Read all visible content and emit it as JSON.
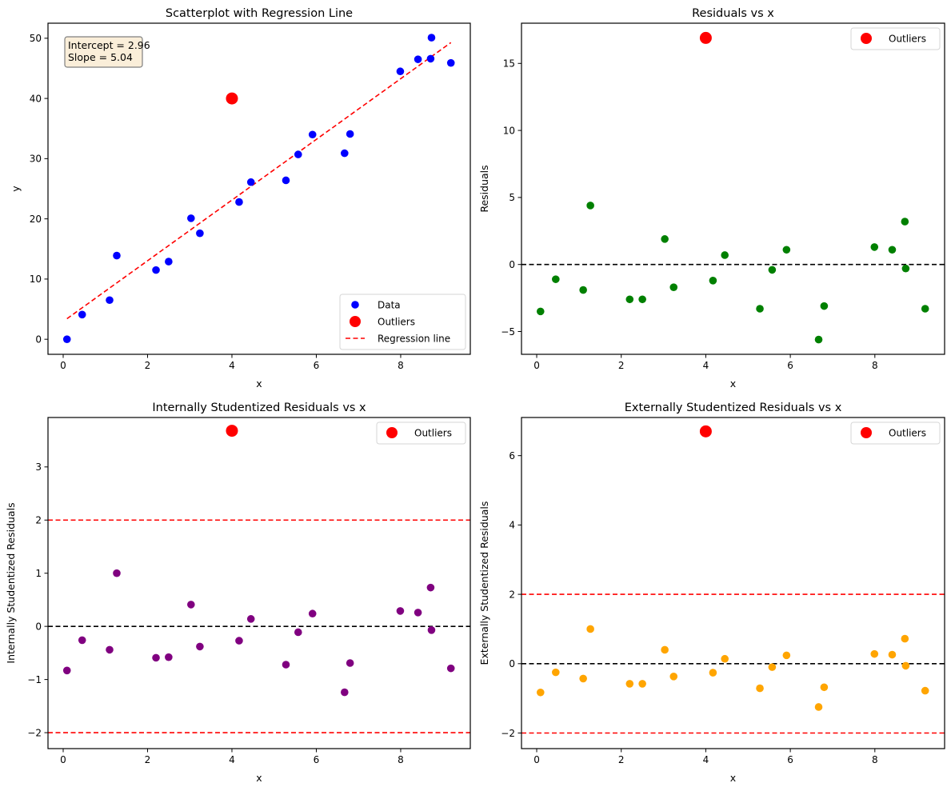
{
  "figure": {
    "colors": {
      "data": "#0000ff",
      "outlier": "#ff0000",
      "residual": "#008000",
      "internal": "#800080",
      "external": "#ffa500",
      "zero_line": "#000000",
      "threshold_line": "#ff0000",
      "annotation_bg": "#f5deb3",
      "annotation_border": "#7f7f7f"
    }
  },
  "chart_data": [
    {
      "id": "scatter",
      "type": "scatter",
      "title": "Scatterplot with Regression Line",
      "xlabel": "x",
      "ylabel": "y",
      "xlim": [
        -0.36,
        9.65
      ],
      "ylim": [
        -2.5,
        52.5
      ],
      "xticks": [
        0,
        2,
        4,
        6,
        8
      ],
      "yticks": [
        0,
        10,
        20,
        30,
        40,
        50
      ],
      "grid": false,
      "annotation": [
        "Intercept = 2.96",
        "Slope = 5.04"
      ],
      "legend_position": "lower-right",
      "legend": [
        {
          "label": "Data",
          "kind": "point-small",
          "color": "data"
        },
        {
          "label": "Outliers",
          "kind": "point-large",
          "color": "outlier"
        },
        {
          "label": "Regression line",
          "kind": "dashed-line",
          "color": "outlier"
        }
      ],
      "series": [
        {
          "name": "Data",
          "color": "data",
          "x": [
            0.09,
            0.45,
            1.1,
            1.27,
            2.2,
            2.5,
            3.03,
            3.24,
            4.17,
            4.45,
            5.28,
            5.57,
            5.91,
            6.67,
            6.8,
            7.99,
            8.41,
            8.71,
            8.73,
            9.19
          ],
          "y": [
            0.0,
            4.1,
            6.5,
            13.9,
            11.5,
            12.9,
            20.1,
            17.6,
            22.8,
            26.1,
            26.4,
            30.7,
            34.0,
            30.9,
            34.1,
            44.5,
            46.5,
            46.6,
            50.1,
            45.9
          ]
        },
        {
          "name": "Outliers",
          "color": "outlier",
          "x": [
            4.0
          ],
          "y": [
            40.0
          ]
        }
      ],
      "regression": {
        "intercept": 2.96,
        "slope": 5.04,
        "x_range": [
          0.09,
          9.19
        ]
      }
    },
    {
      "id": "residuals",
      "type": "scatter",
      "title": "Residuals vs x",
      "xlabel": "x",
      "ylabel": "Residuals",
      "xlim": [
        -0.36,
        9.65
      ],
      "ylim": [
        -6.7,
        18.0
      ],
      "xticks": [
        0,
        2,
        4,
        6,
        8
      ],
      "yticks": [
        -5,
        0,
        5,
        10,
        15
      ],
      "grid": false,
      "legend_position": "upper-right",
      "legend": [
        {
          "label": "Outliers",
          "kind": "point-large",
          "color": "outlier"
        }
      ],
      "hlines": [
        {
          "y": 0,
          "color": "zero_line"
        }
      ],
      "series": [
        {
          "name": "Residuals",
          "color": "residual",
          "x": [
            0.09,
            0.45,
            1.1,
            1.27,
            2.2,
            2.5,
            3.03,
            3.24,
            4.17,
            4.45,
            5.28,
            5.57,
            5.91,
            6.67,
            6.8,
            7.99,
            8.41,
            8.71,
            8.73,
            9.19
          ],
          "y": [
            -3.5,
            -1.1,
            -1.9,
            4.4,
            -2.6,
            -2.6,
            1.9,
            -1.7,
            -1.2,
            0.7,
            -3.3,
            -0.4,
            1.1,
            -5.6,
            -3.1,
            1.3,
            1.1,
            3.2,
            -0.3,
            -3.3
          ]
        },
        {
          "name": "Outliers",
          "color": "outlier",
          "x": [
            4.0
          ],
          "y": [
            16.9
          ]
        }
      ]
    },
    {
      "id": "internal",
      "type": "scatter",
      "title": "Internally Studentized Residuals vs x",
      "xlabel": "x",
      "ylabel": "Internally Studentized Residuals",
      "xlim": [
        -0.36,
        9.65
      ],
      "ylim": [
        -2.3,
        3.93
      ],
      "xticks": [
        0,
        2,
        4,
        6,
        8
      ],
      "yticks": [
        -2,
        -1,
        0,
        1,
        2,
        3
      ],
      "grid": false,
      "legend_position": "upper-right",
      "legend": [
        {
          "label": "Outliers",
          "kind": "point-large",
          "color": "outlier"
        }
      ],
      "hlines": [
        {
          "y": 0,
          "color": "zero_line"
        },
        {
          "y": 2,
          "color": "threshold_line"
        },
        {
          "y": -2,
          "color": "threshold_line"
        }
      ],
      "series": [
        {
          "name": "Internally Studentized Residuals",
          "color": "internal",
          "x": [
            0.09,
            0.45,
            1.1,
            1.27,
            2.2,
            2.5,
            3.03,
            3.24,
            4.17,
            4.45,
            5.28,
            5.57,
            5.91,
            6.67,
            6.8,
            7.99,
            8.41,
            8.71,
            8.73,
            9.19
          ],
          "y": [
            -0.83,
            -0.26,
            -0.44,
            1.0,
            -0.59,
            -0.58,
            0.41,
            -0.38,
            -0.27,
            0.14,
            -0.72,
            -0.11,
            0.24,
            -1.24,
            -0.69,
            0.29,
            0.26,
            0.73,
            -0.07,
            -0.79
          ]
        },
        {
          "name": "Outliers",
          "color": "outlier",
          "x": [
            4.0
          ],
          "y": [
            3.68
          ]
        }
      ]
    },
    {
      "id": "external",
      "type": "scatter",
      "title": "Externally Studentized Residuals vs x",
      "xlabel": "x",
      "ylabel": "Externally Studentized Residuals",
      "xlim": [
        -0.36,
        9.65
      ],
      "ylim": [
        -2.45,
        7.1
      ],
      "xticks": [
        0,
        2,
        4,
        6,
        8
      ],
      "yticks": [
        -2,
        0,
        2,
        4,
        6
      ],
      "grid": false,
      "legend_position": "upper-right",
      "legend": [
        {
          "label": "Outliers",
          "kind": "point-large",
          "color": "outlier"
        }
      ],
      "hlines": [
        {
          "y": 0,
          "color": "zero_line"
        },
        {
          "y": 2,
          "color": "threshold_line"
        },
        {
          "y": -2,
          "color": "threshold_line"
        }
      ],
      "series": [
        {
          "name": "Externally Studentized Residuals",
          "color": "external",
          "x": [
            0.09,
            0.45,
            1.1,
            1.27,
            2.2,
            2.5,
            3.03,
            3.24,
            4.17,
            4.45,
            5.28,
            5.57,
            5.91,
            6.67,
            6.8,
            7.99,
            8.41,
            8.71,
            8.73,
            9.19
          ],
          "y": [
            -0.83,
            -0.25,
            -0.43,
            1.0,
            -0.58,
            -0.58,
            0.4,
            -0.37,
            -0.26,
            0.14,
            -0.71,
            -0.1,
            0.24,
            -1.25,
            -0.68,
            0.28,
            0.26,
            0.72,
            -0.06,
            -0.78
          ]
        },
        {
          "name": "Outliers",
          "color": "outlier",
          "x": [
            4.0
          ],
          "y": [
            6.7
          ]
        }
      ]
    }
  ]
}
